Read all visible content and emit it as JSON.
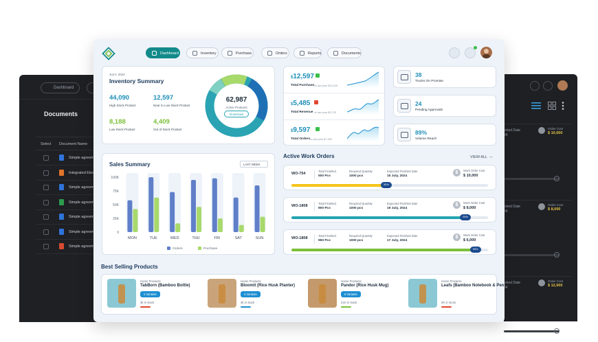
{
  "back_left": {
    "nav_label": "Dashboard",
    "title": "Documents",
    "col_select": "Select",
    "col_name": "Document Name",
    "rows": [
      {
        "name": "Simple agreem",
        "color": "#2f73d9"
      },
      {
        "name": "Integrated Elec",
        "color": "#e0742a"
      },
      {
        "name": "Simple agreem",
        "color": "#2f73d9"
      },
      {
        "name": "Simple agreem",
        "color": "#2e9b4e"
      },
      {
        "name": "Simple agreem",
        "color": "#2f73d9"
      },
      {
        "name": "Simple agreem",
        "color": "#2f73d9"
      },
      {
        "name": "Simple agreem",
        "color": "#d84a2f"
      }
    ]
  },
  "back_right": {
    "cards": [
      {
        "label": "ished Date",
        "value_label": "Order Cost",
        "value": "$ 10,000",
        "sub": "24"
      },
      {
        "label": "ished Date",
        "value_label": "Order Cost",
        "value": "$ 8,000",
        "sub": "24"
      },
      {
        "label": "ished Date",
        "value_label": "Order Cost",
        "value": "$ 12,000",
        "sub": "24"
      }
    ]
  },
  "nav": {
    "items": [
      {
        "label": "Dashboard",
        "active": true
      },
      {
        "label": "Inventory",
        "active": false
      },
      {
        "label": "Purchase",
        "active": false
      },
      {
        "label": "Orders",
        "active": false
      },
      {
        "label": "Reports",
        "active": false
      },
      {
        "label": "Documents",
        "active": false
      }
    ]
  },
  "inventory": {
    "date": "JULY, 2024",
    "title": "Inventory Summary",
    "stats": [
      {
        "value": "44,090",
        "label": "High Stock Product",
        "color": "#1e8fb8"
      },
      {
        "value": "12,597",
        "label": "Near to Low Stock Product",
        "color": "#1e8fb8"
      },
      {
        "value": "8,188",
        "label": "Low Stock Product",
        "color": "#7cbf3a"
      },
      {
        "value": "4,409",
        "label": "Out of Stock Product",
        "color": "#7cbf3a"
      }
    ],
    "donut_value": "62,987",
    "donut_label": "Active Products",
    "download_label": "Download"
  },
  "kpis": [
    {
      "value": "12,597",
      "name": "Total Purchase",
      "sub": "vs last year $13,425",
      "badge": "#3bbf4a"
    },
    {
      "value": "5,485",
      "name": "Total Revenue",
      "sub": "vs last year $5,725",
      "badge": "#e0472f"
    },
    {
      "value": "9,597",
      "name": "Total Orders",
      "sub": "vs last year $7,950",
      "badge": "#3bbf4a"
    }
  ],
  "kpi_currency": "$",
  "right_cards": [
    {
      "value": "38",
      "label": "Trucks On Promise",
      "icon": "truck-icon"
    },
    {
      "value": "24",
      "label": "Pending Approvals",
      "icon": "van-icon"
    },
    {
      "value": "89%",
      "label": "Volume Reach",
      "icon": "box-icon"
    }
  ],
  "sales": {
    "title": "Sales Summary",
    "filter": "LAST WEEK",
    "legend_orders": "Orders",
    "legend_purchase": "Purchase"
  },
  "chart_data": {
    "type": "bar",
    "categories": [
      "MON",
      "TUE",
      "WED",
      "THU",
      "FRI",
      "SAT",
      "SUN"
    ],
    "series": [
      {
        "name": "Orders",
        "color": "#5f7fc8",
        "values": [
          58000,
          100000,
          73000,
          95000,
          98000,
          63000,
          85000
        ]
      },
      {
        "name": "Purchase",
        "color": "#a8d96b",
        "values": [
          42000,
          63000,
          16000,
          46000,
          25000,
          13000,
          28000
        ]
      }
    ],
    "yticks": [
      "100K",
      "75K",
      "50K",
      "25K",
      "0"
    ],
    "ylim": [
      0,
      120000
    ]
  },
  "work_orders": {
    "title": "Active Work Orders",
    "view_all": "VIEW ALL",
    "items": [
      {
        "id": "WO-754",
        "finished_label": "Total Finished",
        "finished": "500 Pcs",
        "req_label": "Required Quantity",
        "req": "1000 pcs",
        "date_label": "Expected Finished Date",
        "date": "15 July, 2024",
        "cost_label": "Work Order Cost",
        "cost": "$ 10,000",
        "progress": 50,
        "color": "#f5c518",
        "pct": "50%"
      },
      {
        "id": "WO-1808",
        "finished_label": "Total Finished",
        "finished": "900 Pcs",
        "req_label": "Required Quantity",
        "req": "1000 pcs",
        "date_label": "Expected Finished Date",
        "date": "19 July, 2024",
        "cost_label": "Work Order Cost",
        "cost": "$ 8,000",
        "progress": 90,
        "color": "#24a4b0",
        "pct": "90%"
      },
      {
        "id": "WO-1808",
        "finished_label": "Total Finished",
        "finished": "950 Pcs",
        "req_label": "Required Quantity",
        "req": "1000 pcs",
        "date_label": "Expected Finished Date",
        "date": "17 July, 2024",
        "cost_label": "Work Order Cost",
        "cost": "$ 6,000",
        "progress": 95,
        "color": "#7cbf3a",
        "pct": "95%"
      }
    ]
  },
  "best": {
    "title": "Best Selling Products",
    "products": [
      {
        "category": "Home Products",
        "name": "TabBorn (Bamboo Bottle)",
        "variants": "2 Variants",
        "stock": "3k in stock",
        "img": "#8bc8d4",
        "ind": "#e0472f"
      },
      {
        "category": "Home Products",
        "name": "Bloomit (Rice Husk Planter)",
        "variants": "4 Variants",
        "stock": "3k in stock",
        "img": "#c9a47a",
        "ind": "#1e8fd1"
      },
      {
        "category": "Home Products",
        "name": "Pandor (Rice Husk Mug)",
        "variants": "6 Variants",
        "stock": "21K in stock",
        "img": "#c49a6c",
        "ind": "#7cbf3a"
      },
      {
        "category": "Home Products",
        "name": "Leafs (Bamboo Notebook & Pen",
        "variants": "",
        "stock": "2K in stock",
        "img": "#8bc8d4",
        "ind": "#e0472f"
      }
    ]
  }
}
